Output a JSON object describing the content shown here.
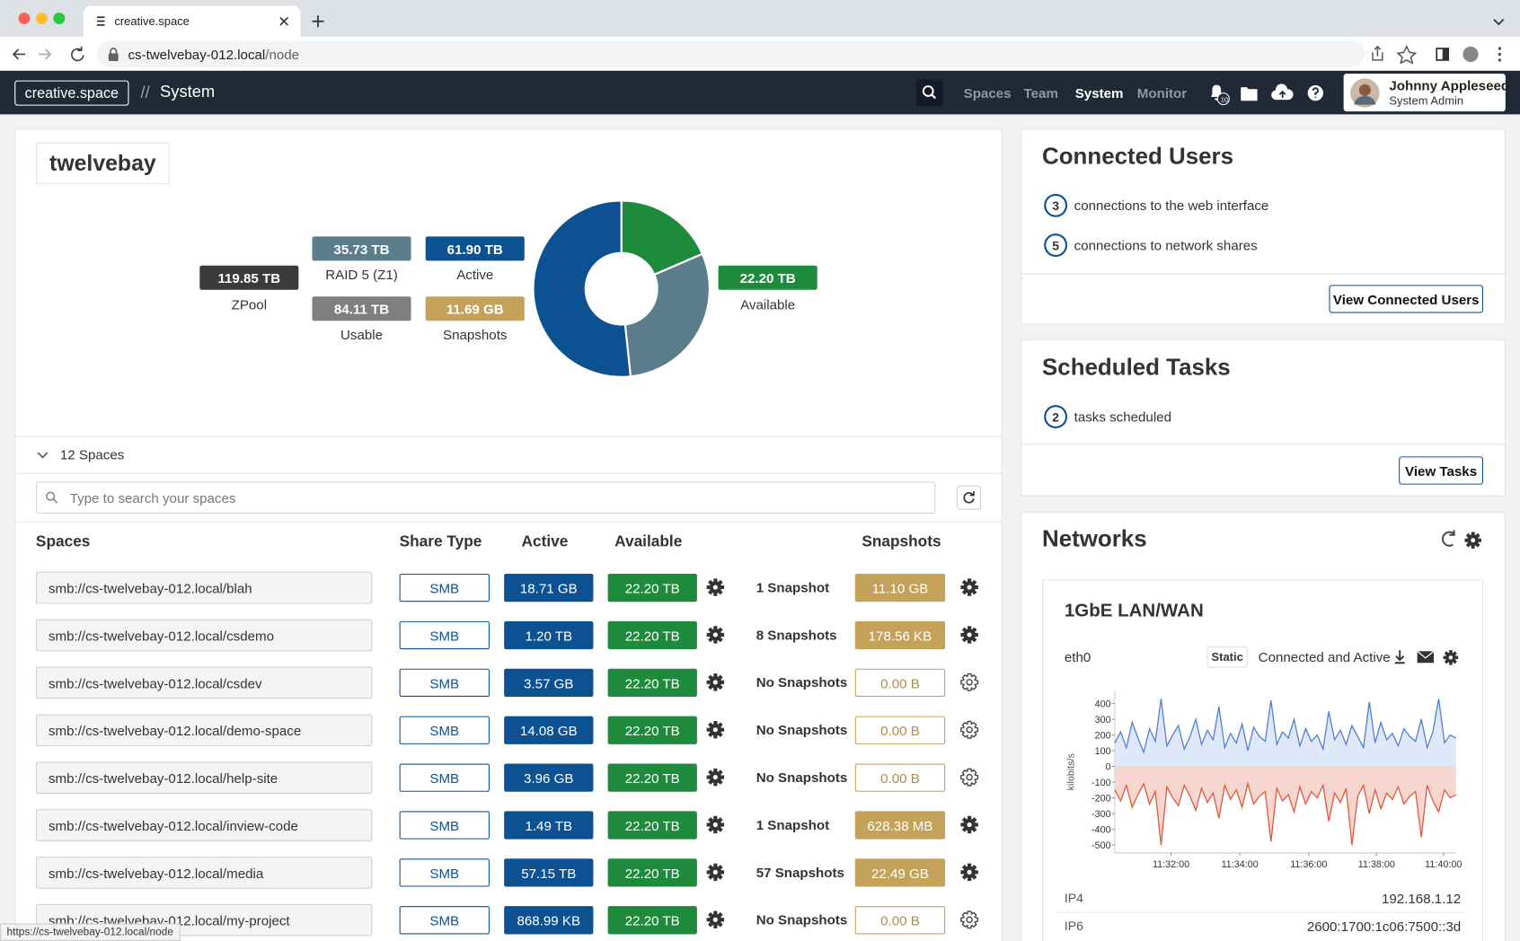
{
  "browser": {
    "tab_title": "creative.space",
    "url_host": "cs-twelvebay-012.local",
    "url_path": "/node",
    "status_url": "https://cs-twelvebay-012.local/node"
  },
  "header": {
    "brand": "creative.space",
    "separator": "//",
    "section": "System",
    "nav": [
      "Spaces",
      "Team",
      "System",
      "Monitor"
    ],
    "active_nav": 2,
    "notifications": "10",
    "user_name": "Johnny Appleseed",
    "user_role": "System Admin"
  },
  "storage": {
    "title": "twelvebay",
    "stats": [
      {
        "name": "ZPool",
        "value": 119.85,
        "label": "119.85 TB",
        "color": "#3b3b3b",
        "in_donut": false
      },
      {
        "name": "Available",
        "value": 22.2,
        "label": "22.20 TB",
        "color": "#1e8a3c",
        "in_donut": true
      },
      {
        "name": "RAID 5 (Z1)",
        "value": 35.73,
        "label": "35.73 TB",
        "color": "#5b7d8c",
        "in_donut": true
      },
      {
        "name": "Usable",
        "value": 84.11,
        "label": "84.11 TB",
        "color": "#7f7f7f",
        "in_donut": false
      },
      {
        "name": "Active",
        "value": 61.9,
        "label": "61.90 TB",
        "color": "#0c5293",
        "in_donut": true
      },
      {
        "name": "Snapshots",
        "value": 11.69,
        "label": "11.69 GB",
        "color": "#c4a25a",
        "in_donut": false
      }
    ]
  },
  "spaces": {
    "count_label": "12 Spaces",
    "search_placeholder": "Type to search your spaces",
    "columns": [
      "Spaces",
      "Share Type",
      "Active",
      "Available",
      "Snapshots"
    ],
    "rows": [
      {
        "path": "smb://cs-twelvebay-012.local/blah",
        "share": "SMB",
        "active": "18.71 GB",
        "available": "22.20 TB",
        "snapshots": "1 Snapshot",
        "snapshot_size": {
          "value": 11.1,
          "label": "11.10 GB"
        }
      },
      {
        "path": "smb://cs-twelvebay-012.local/csdemo",
        "share": "SMB",
        "active": "1.20 TB",
        "available": "22.20 TB",
        "snapshots": "8 Snapshots",
        "snapshot_size": {
          "value": 178.56,
          "label": "178.56 KB"
        }
      },
      {
        "path": "smb://cs-twelvebay-012.local/csdev",
        "share": "SMB",
        "active": "3.57 GB",
        "available": "22.20 TB",
        "snapshots": "No Snapshots",
        "snapshot_size": {
          "value": 0,
          "label": "0.00 B"
        }
      },
      {
        "path": "smb://cs-twelvebay-012.local/demo-space",
        "share": "SMB",
        "active": "14.08 GB",
        "available": "22.20 TB",
        "snapshots": "No Snapshots",
        "snapshot_size": {
          "value": 0,
          "label": "0.00 B"
        }
      },
      {
        "path": "smb://cs-twelvebay-012.local/help-site",
        "share": "SMB",
        "active": "3.96 GB",
        "available": "22.20 TB",
        "snapshots": "No Snapshots",
        "snapshot_size": {
          "value": 0,
          "label": "0.00 B"
        }
      },
      {
        "path": "smb://cs-twelvebay-012.local/inview-code",
        "share": "SMB",
        "active": "1.49 TB",
        "available": "22.20 TB",
        "snapshots": "1 Snapshot",
        "snapshot_size": {
          "value": 628.38,
          "label": "628.38 MB"
        }
      },
      {
        "path": "smb://cs-twelvebay-012.local/media",
        "share": "SMB",
        "active": "57.15 TB",
        "available": "22.20 TB",
        "snapshots": "57 Snapshots",
        "snapshot_size": {
          "value": 22.49,
          "label": "22.49 GB"
        }
      },
      {
        "path": "smb://cs-twelvebay-012.local/my-project",
        "share": "SMB",
        "active": "868.99 KB",
        "available": "22.20 TB",
        "snapshots": "No Snapshots",
        "snapshot_size": {
          "value": 0,
          "label": "0.00 B"
        }
      }
    ]
  },
  "connected_users": {
    "title": "Connected Users",
    "items": [
      {
        "count": "3",
        "text": "connections to the web interface"
      },
      {
        "count": "5",
        "text": "connections to network shares"
      }
    ],
    "button": "View Connected Users"
  },
  "scheduled_tasks": {
    "title": "Scheduled Tasks",
    "items": [
      {
        "count": "2",
        "text": "tasks scheduled"
      }
    ],
    "button": "View Tasks"
  },
  "networks": {
    "title": "Networks",
    "interface_title": "1GbE LAN/WAN",
    "interface": "eth0",
    "mode": "Static",
    "status": "Connected and Active",
    "addresses": [
      {
        "label": "IP4",
        "value": "192.168.1.12"
      },
      {
        "label": "IP6",
        "value": "2600:1700:1c06:7500::3d"
      }
    ]
  },
  "chart_data": {
    "type": "line",
    "y_label": "kilobits/s",
    "ylim": [
      -550,
      480
    ],
    "yticks": [
      400,
      300,
      200,
      100,
      0,
      -100,
      -200,
      -300,
      -400,
      -500
    ],
    "xticks": [
      "11:32:00",
      "11:34:00",
      "11:36:00",
      "11:38:00",
      "11:40:00"
    ],
    "series": [
      {
        "color": "#4f7fd6",
        "fill": "#dfe8f8",
        "values": [
          150,
          220,
          120,
          280,
          180,
          90,
          240,
          160,
          430,
          130,
          200,
          260,
          110,
          190,
          300,
          140,
          230,
          170,
          380,
          120,
          210,
          150,
          270,
          100,
          250,
          190,
          160,
          420,
          140,
          220,
          180,
          300,
          130,
          240,
          160,
          200,
          110,
          350,
          170,
          230,
          140,
          260,
          190,
          120,
          410,
          150,
          280,
          170,
          210,
          130,
          240,
          190,
          160,
          300,
          120,
          220,
          430,
          150,
          200,
          180
        ]
      },
      {
        "color": "#e2573a",
        "fill": "#f8d6d0",
        "values": [
          -150,
          -220,
          -120,
          -260,
          -180,
          -110,
          -240,
          -160,
          -500,
          -130,
          -200,
          -250,
          -120,
          -190,
          -280,
          -140,
          -230,
          -170,
          -330,
          -120,
          -210,
          -150,
          -260,
          -110,
          -240,
          -190,
          -160,
          -480,
          -140,
          -220,
          -180,
          -290,
          -130,
          -240,
          -160,
          -200,
          -120,
          -350,
          -170,
          -230,
          -140,
          -500,
          -190,
          -120,
          -300,
          -150,
          -270,
          -170,
          -210,
          -130,
          -240,
          -190,
          -160,
          -450,
          -120,
          -220,
          -290,
          -150,
          -200,
          -180
        ]
      }
    ]
  }
}
